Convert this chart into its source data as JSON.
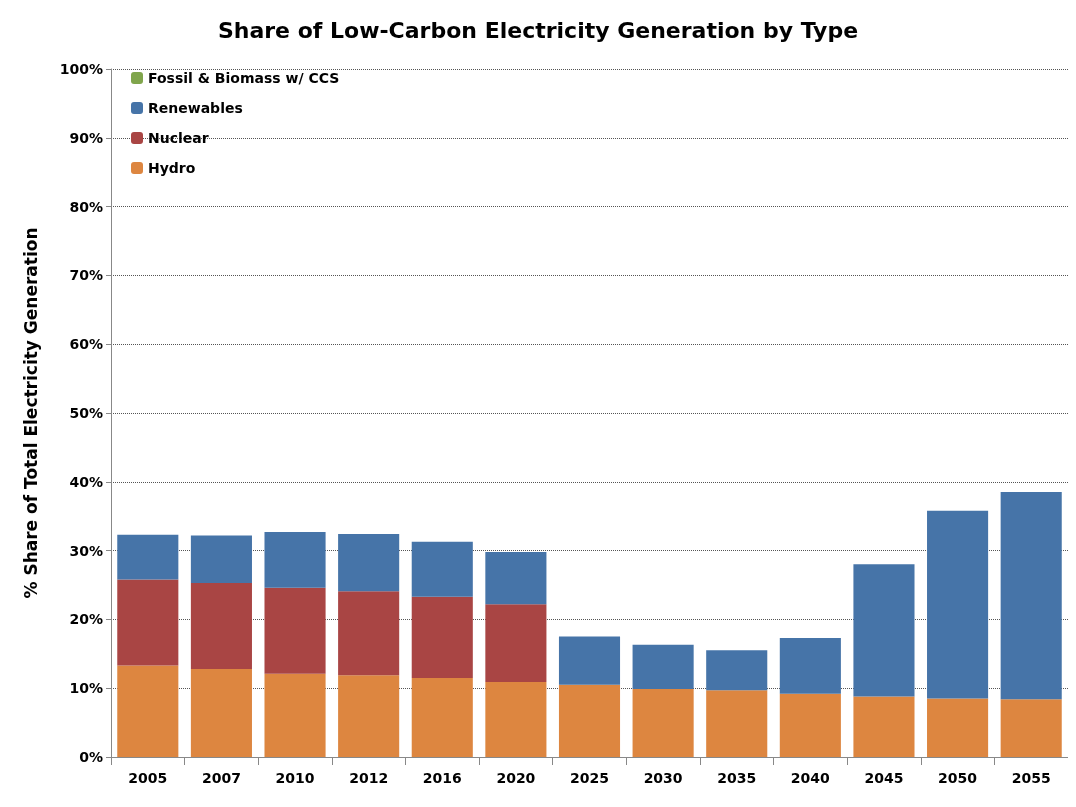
{
  "chart_data": {
    "type": "bar",
    "title": "Share of Low-Carbon Electricity Generation by Type",
    "ylabel": "% Share of Total Electricity Generation",
    "stacked": true,
    "grid": "y",
    "legend": "top left",
    "categories": [
      "2005",
      "2007",
      "2010",
      "2012",
      "2016",
      "2020",
      "2025",
      "2030",
      "2035",
      "2040",
      "2045",
      "2050",
      "2055"
    ],
    "series": [
      {
        "name": "Hydro",
        "color": "#dd8640",
        "values": [
          13.3,
          12.8,
          12.1,
          11.9,
          11.5,
          10.9,
          10.5,
          9.9,
          9.7,
          9.2,
          8.8,
          8.5,
          8.4
        ]
      },
      {
        "name": "Nuclear",
        "color": "#a94544",
        "values": [
          12.5,
          12.5,
          12.5,
          12.2,
          11.8,
          11.3,
          0,
          0,
          0,
          0,
          0,
          0,
          0
        ]
      },
      {
        "name": "Renewables",
        "color": "#4674a8",
        "values": [
          6.5,
          6.9,
          8.1,
          8.3,
          8.0,
          7.6,
          7.0,
          6.4,
          5.8,
          8.1,
          19.2,
          27.3,
          30.1
        ]
      },
      {
        "name": "Fossil & Biomass w/ CCS",
        "color": "#80a54c",
        "values": [
          0,
          0,
          0,
          0,
          0,
          0,
          0,
          0,
          0,
          0,
          0,
          0,
          0
        ]
      }
    ],
    "ylim": [
      0,
      100
    ],
    "yticks": [
      {
        "value": 0,
        "label": "0%"
      },
      {
        "value": 10,
        "label": "10%"
      },
      {
        "value": 20,
        "label": "20%"
      },
      {
        "value": 30,
        "label": "30%"
      },
      {
        "value": 40,
        "label": "40%"
      },
      {
        "value": 50,
        "label": "50%"
      },
      {
        "value": 60,
        "label": "60%"
      },
      {
        "value": 70,
        "label": "70%"
      },
      {
        "value": 80,
        "label": "80%"
      },
      {
        "value": 90,
        "label": "90%"
      },
      {
        "value": 100,
        "label": "100%"
      }
    ]
  }
}
